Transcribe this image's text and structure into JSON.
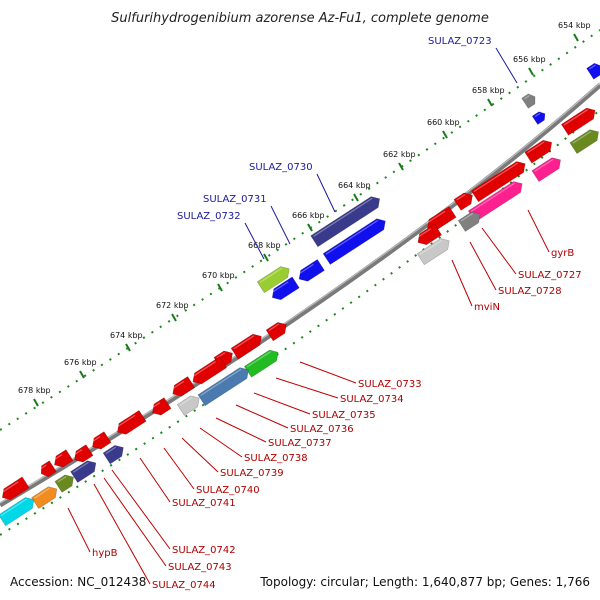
{
  "title": "Sulfurihydrogenibium azorense Az-Fu1, complete genome",
  "footer": {
    "accession": "Accession: NC_012438",
    "summary": "Topology: circular; Length: 1,640,877 bp; Genes: 1,766"
  },
  "ticks": [
    "654 kbp",
    "656 kbp",
    "658 kbp",
    "660 kbp",
    "662 kbp",
    "664 kbp",
    "666 kbp",
    "668 kbp",
    "670 kbp",
    "672 kbp",
    "674 kbp",
    "676 kbp",
    "678 kbp"
  ],
  "labels_outer": [
    "SULAZ_0723",
    "SULAZ_0730",
    "SULAZ_0731",
    "SULAZ_0732"
  ],
  "labels_inner": [
    "gyrB",
    "SULAZ_0727",
    "SULAZ_0728",
    "mviN",
    "SULAZ_0733",
    "SULAZ_0734",
    "SULAZ_0735",
    "SULAZ_0736",
    "SULAZ_0737",
    "SULAZ_0738",
    "SULAZ_0739",
    "SULAZ_0740",
    "SULAZ_0741",
    "SULAZ_0742",
    "SULAZ_0743",
    "SULAZ_0744",
    "hypB"
  ],
  "colors": {
    "red": "#e00000",
    "blue": "#1010ee",
    "navy": "#3a3a8c",
    "gray": "#808080",
    "lightgray": "#c8c8c8",
    "pink": "#ff2090",
    "olive": "#6a8a20",
    "lime": "#9acd32",
    "green": "#22bb22",
    "steel": "#4a7ab0",
    "orange": "#f08c20",
    "cyan": "#00d8e8",
    "tick": "#1a7a1a"
  }
}
